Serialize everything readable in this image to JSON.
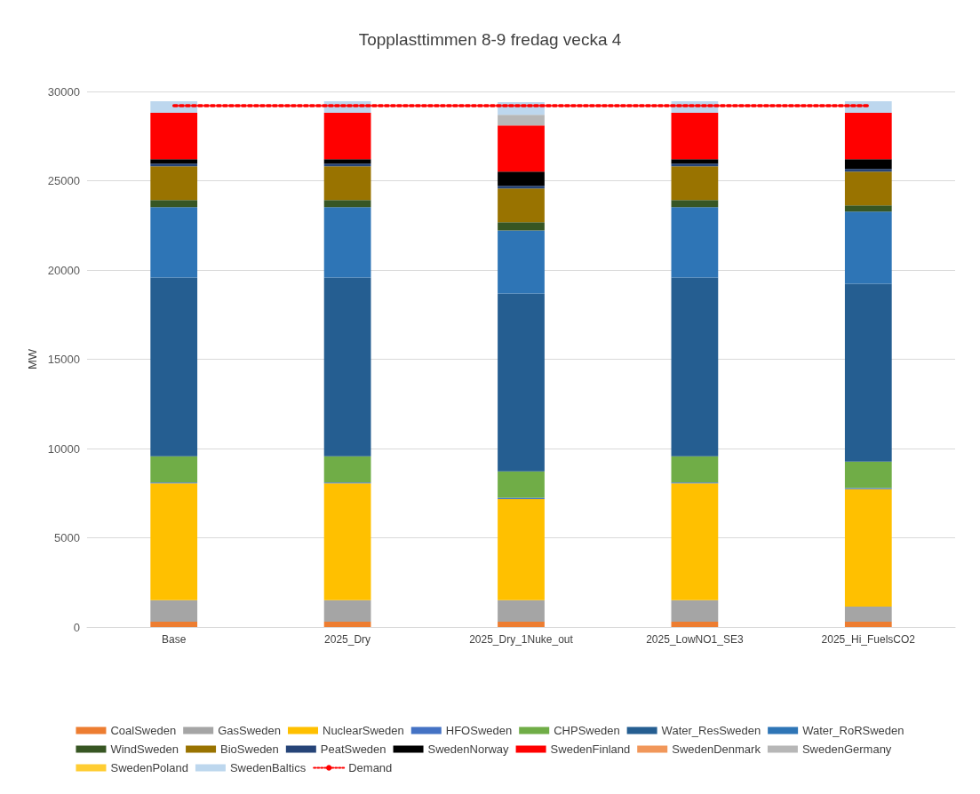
{
  "chart_data": {
    "type": "bar",
    "title": "Topplasttimmen 8-9 fredag vecka 4",
    "ylabel": "MW",
    "stacked": true,
    "categories": [
      "Base",
      "2025_Dry",
      "2025_Dry_1Nuke_out",
      "2025_LowNO1_SE3",
      "2025_Hi_FuelsCO2"
    ],
    "ylim": [
      0,
      30000
    ],
    "yticks": [
      0,
      5000,
      10000,
      15000,
      20000,
      25000,
      30000
    ],
    "grid": "y",
    "legend": "bottom",
    "series": [
      {
        "name": "CoalSweden",
        "color": "#ed7d31",
        "values": [
          300,
          300,
          300,
          300,
          300
        ]
      },
      {
        "name": "GasSweden",
        "color": "#a5a5a5",
        "values": [
          1200,
          1200,
          1200,
          1200,
          850
        ]
      },
      {
        "name": "NuclearSweden",
        "color": "#ffc000",
        "values": [
          6550,
          6550,
          5670,
          6550,
          6570
        ]
      },
      {
        "name": "HFOSweden",
        "color": "#4472c4",
        "values": [
          50,
          50,
          70,
          50,
          70
        ]
      },
      {
        "name": "CHPSweden",
        "color": "#70ad47",
        "values": [
          1470,
          1470,
          1480,
          1470,
          1480
        ]
      },
      {
        "name": "Water_ResSweden",
        "color": "#255e91",
        "values": [
          10010,
          10010,
          9960,
          10010,
          9960
        ]
      },
      {
        "name": "Water_RoRSweden",
        "color": "#2e75b6",
        "values": [
          3940,
          3940,
          3540,
          3940,
          4040
        ]
      },
      {
        "name": "WindSweden",
        "color": "#375623",
        "values": [
          400,
          400,
          450,
          400,
          350
        ]
      },
      {
        "name": "BioSweden",
        "color": "#997300",
        "values": [
          1890,
          1890,
          1890,
          1890,
          1890
        ]
      },
      {
        "name": "PeatSweden",
        "color": "#264478",
        "values": [
          150,
          150,
          150,
          150,
          150
        ]
      },
      {
        "name": "SwedenNorway",
        "color": "#000000",
        "values": [
          250,
          250,
          800,
          250,
          550
        ]
      },
      {
        "name": "SwedenFinland",
        "color": "#ff0000",
        "values": [
          2590,
          2590,
          2590,
          2590,
          2590
        ]
      },
      {
        "name": "SwedenDenmark",
        "color": "#f1975a",
        "values": [
          0,
          0,
          0,
          0,
          0
        ]
      },
      {
        "name": "SwedenGermany",
        "color": "#b7b7b7",
        "values": [
          0,
          0,
          600,
          0,
          0
        ]
      },
      {
        "name": "SwedenPoland",
        "color": "#ffcd33",
        "values": [
          0,
          0,
          0,
          0,
          0
        ]
      },
      {
        "name": "SwedenBaltics",
        "color": "#bdd7ee",
        "values": [
          650,
          650,
          700,
          650,
          650
        ]
      },
      {
        "name": "Demand",
        "type": "line",
        "color": "#ff0000",
        "line_style": "dotted",
        "marker": "none",
        "values": [
          29200,
          29200,
          29200,
          29200,
          29200
        ]
      }
    ]
  }
}
